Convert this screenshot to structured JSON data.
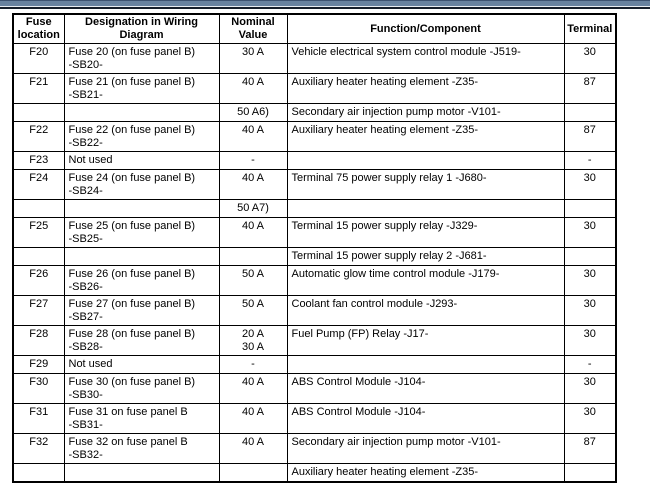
{
  "colors": {
    "top_bar_blue": "#68829f",
    "top_bar_dark": "#161e2a",
    "top_bar_highlight": "#e9edf2",
    "table_border": "#000000",
    "background": "#ffffff"
  },
  "table": {
    "headers": [
      "Fuse\nlocation",
      "Designation in Wiring\nDiagram",
      "Nominal\nValue",
      "Function/Component",
      "Terminal"
    ],
    "rows": [
      {
        "location": "F20",
        "designation": "Fuse 20 (on fuse panel B)\n-SB20-",
        "nominal": "30 A",
        "function": "Vehicle electrical system control module -J519-",
        "terminal": "30"
      },
      {
        "location": "F21",
        "designation": "Fuse 21 (on fuse panel B)\n-SB21-",
        "nominal": "40 A",
        "function": "Auxiliary heater heating element -Z35-",
        "terminal": "87"
      },
      {
        "location": "",
        "designation": "",
        "nominal": "50 A6)",
        "function": "Secondary air injection pump motor -V101-",
        "terminal": ""
      },
      {
        "location": "F22",
        "designation": "Fuse 22 (on fuse panel B)\n-SB22-",
        "nominal": "40 A",
        "function": "Auxiliary heater heating element -Z35-",
        "terminal": "87"
      },
      {
        "location": "F23",
        "designation": "Not used",
        "nominal": "-",
        "function": "",
        "terminal": "-"
      },
      {
        "location": "F24",
        "designation": "Fuse 24 (on fuse panel B)\n-SB24-",
        "nominal": "40 A",
        "function": "Terminal 75 power supply relay 1 -J680-",
        "terminal": "30"
      },
      {
        "location": "",
        "designation": "",
        "nominal": "50 A7)",
        "function": "",
        "terminal": ""
      },
      {
        "location": "F25",
        "designation": "Fuse 25 (on fuse panel B)\n-SB25-",
        "nominal": "40 A",
        "function": "Terminal 15 power supply relay -J329-",
        "terminal": "30"
      },
      {
        "location": "",
        "designation": "",
        "nominal": "",
        "function": "Terminal 15 power supply relay 2 -J681-",
        "terminal": ""
      },
      {
        "location": "F26",
        "designation": "Fuse 26 (on fuse panel B)\n-SB26-",
        "nominal": "50 A",
        "function": "Automatic glow time control module -J179-",
        "terminal": "30"
      },
      {
        "location": "F27",
        "designation": "Fuse 27 (on fuse panel B)\n-SB27-",
        "nominal": "50 A",
        "function": "Coolant fan control module -J293-",
        "terminal": "30"
      },
      {
        "location": "F28",
        "designation": "Fuse 28 (on fuse panel B)\n-SB28-",
        "nominal": "20 A\n30 A",
        "function": "Fuel Pump (FP) Relay -J17-",
        "terminal": "30"
      },
      {
        "location": "F29",
        "designation": "Not used",
        "nominal": "-",
        "function": "",
        "terminal": "-"
      },
      {
        "location": "F30",
        "designation": "Fuse 30 (on fuse panel B)\n-SB30-",
        "nominal": "40 A",
        "function": "ABS Control Module -J104-",
        "terminal": "30"
      },
      {
        "location": "F31",
        "designation": "Fuse 31 on fuse panel B\n-SB31-",
        "nominal": "40 A",
        "function": "ABS Control Module -J104-",
        "terminal": "30"
      },
      {
        "location": "F32",
        "designation": "Fuse 32 on fuse panel B\n-SB32-",
        "nominal": "40 A",
        "function": "Secondary air injection pump motor -V101-",
        "terminal": "87"
      },
      {
        "location": "",
        "designation": "",
        "nominal": "",
        "function": "Auxiliary heater heating element -Z35-",
        "terminal": ""
      }
    ]
  }
}
